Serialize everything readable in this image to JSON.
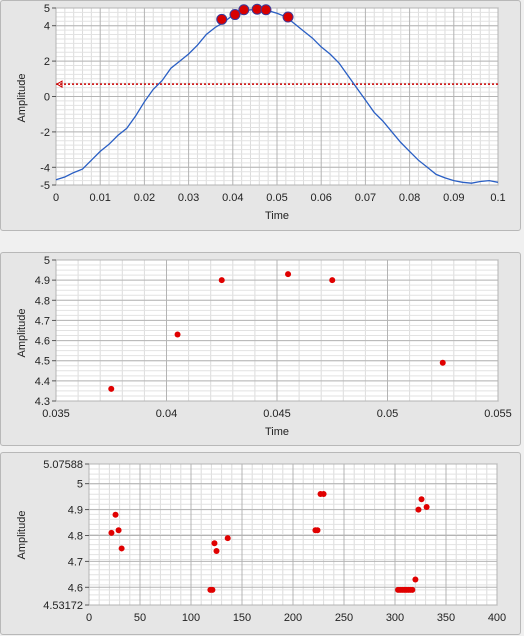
{
  "chart_data": [
    {
      "type": "line",
      "xlabel": "Time",
      "ylabel": "Amplitude",
      "xlim": [
        0,
        0.1
      ],
      "ylim": [
        -5,
        5
      ],
      "xticks": [
        "0",
        "0.01",
        "0.02",
        "0.03",
        "0.04",
        "0.05",
        "0.06",
        "0.07",
        "0.08",
        "0.09",
        "0.1"
      ],
      "yticks": [
        "5",
        "4",
        "2",
        "0",
        "-2",
        "-4",
        "-5"
      ],
      "threshold": 0.7,
      "series": [
        {
          "x": [
            0,
            0.002,
            0.004,
            0.006,
            0.008,
            0.01,
            0.012,
            0.014,
            0.016,
            0.018,
            0.02,
            0.022,
            0.024,
            0.026,
            0.028,
            0.03,
            0.032,
            0.034,
            0.036,
            0.038,
            0.04,
            0.042,
            0.044,
            0.046,
            0.048,
            0.05,
            0.052,
            0.054,
            0.056,
            0.058,
            0.06,
            0.062,
            0.064,
            0.066,
            0.068,
            0.07,
            0.072,
            0.074,
            0.076,
            0.078,
            0.08,
            0.082,
            0.084,
            0.086,
            0.088,
            0.09,
            0.092,
            0.094,
            0.096,
            0.098,
            0.1
          ],
          "values": [
            -4.7,
            -4.55,
            -4.3,
            -4.1,
            -3.6,
            -3.1,
            -2.7,
            -2.2,
            -1.8,
            -1.1,
            -0.3,
            0.4,
            0.9,
            1.6,
            2.0,
            2.4,
            2.9,
            3.5,
            3.9,
            4.2,
            4.6,
            4.8,
            4.9,
            4.9,
            4.85,
            4.7,
            4.5,
            4.1,
            3.7,
            3.3,
            2.8,
            2.4,
            1.9,
            1.2,
            0.5,
            -0.2,
            -0.9,
            -1.4,
            -2.0,
            -2.6,
            -3.1,
            -3.6,
            -4.0,
            -4.4,
            -4.6,
            -4.75,
            -4.85,
            -4.9,
            -4.8,
            -4.75,
            -4.85
          ]
        }
      ],
      "markers": [
        {
          "x": 0.0375,
          "y": 4.36
        },
        {
          "x": 0.0405,
          "y": 4.63
        },
        {
          "x": 0.0425,
          "y": 4.9
        },
        {
          "x": 0.0455,
          "y": 4.93
        },
        {
          "x": 0.0475,
          "y": 4.9
        },
        {
          "x": 0.0525,
          "y": 4.49
        }
      ]
    },
    {
      "type": "scatter",
      "xlabel": "Time",
      "ylabel": "Amplitude",
      "xlim": [
        0.035,
        0.055
      ],
      "ylim": [
        4.3,
        5
      ],
      "xticks": [
        "0.035",
        "0.04",
        "0.045",
        "0.05",
        "0.055"
      ],
      "yticks": [
        "5",
        "4.9",
        "4.8",
        "4.7",
        "4.6",
        "4.5",
        "4.4",
        "4.3"
      ],
      "series": [
        {
          "x": [
            0.0375,
            0.0405,
            0.0425,
            0.0455,
            0.0475,
            0.0525
          ],
          "values": [
            4.36,
            4.63,
            4.9,
            4.93,
            4.9,
            4.49
          ]
        }
      ]
    },
    {
      "type": "scatter",
      "xlabel": "",
      "ylabel": "Amplitude",
      "xlim": [
        0,
        400
      ],
      "ylim": [
        4.53172,
        5.07588
      ],
      "xticks": [
        "0",
        "50",
        "100",
        "150",
        "200",
        "250",
        "300",
        "350",
        "400"
      ],
      "yticks": [
        "5.07588",
        "5",
        "4.9",
        "4.8",
        "4.7",
        "4.6",
        "4.53172"
      ],
      "series": [
        {
          "x": [
            22,
            26,
            29,
            32,
            119,
            121,
            123,
            125,
            136,
            222,
            224,
            227,
            230,
            303,
            305,
            307,
            309,
            311,
            313,
            315,
            317,
            320,
            323,
            326,
            331
          ],
          "values": [
            4.81,
            4.88,
            4.82,
            4.75,
            4.59,
            4.59,
            4.77,
            4.74,
            4.79,
            4.82,
            4.82,
            4.96,
            4.96,
            4.59,
            4.59,
            4.59,
            4.59,
            4.59,
            4.59,
            4.59,
            4.59,
            4.63,
            4.9,
            4.94,
            4.91
          ]
        }
      ]
    }
  ]
}
